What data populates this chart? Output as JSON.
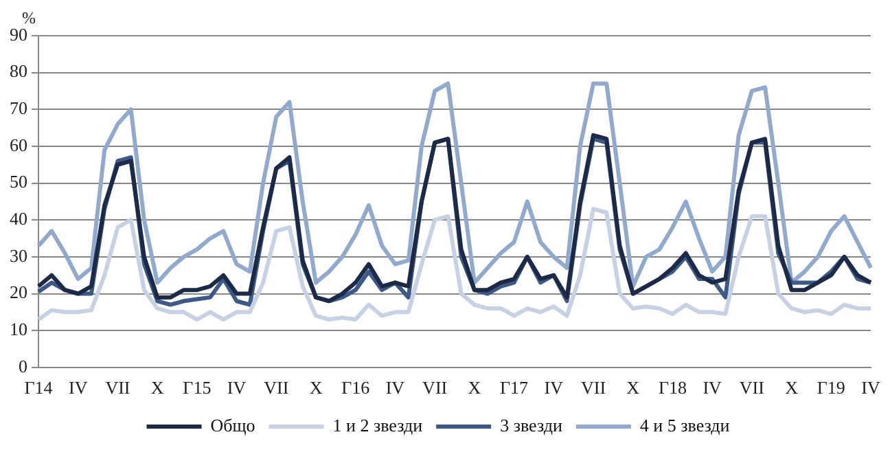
{
  "chart_data": {
    "type": "line",
    "ylabel": "%",
    "categories": [
      "Г14",
      null,
      null,
      "IV",
      null,
      null,
      "VII",
      null,
      null,
      "X",
      null,
      null,
      "Г15",
      null,
      null,
      "IV",
      null,
      null,
      "VII",
      null,
      null,
      "X",
      null,
      null,
      "Г16",
      null,
      null,
      "IV",
      null,
      null,
      "VII",
      null,
      null,
      "X",
      null,
      null,
      "Г17",
      null,
      null,
      "IV",
      null,
      null,
      "VII",
      null,
      null,
      "X",
      null,
      null,
      "Г18",
      null,
      null,
      "IV",
      null,
      null,
      "VII",
      null,
      null,
      "X",
      null,
      null,
      "Г19",
      null,
      null,
      "IV"
    ],
    "series": [
      {
        "name": "Общо",
        "color": "#1c2a48",
        "values": [
          22,
          25,
          21,
          20,
          22,
          44,
          55,
          56,
          30,
          19,
          19,
          21,
          21,
          22,
          25,
          20,
          20,
          38,
          54,
          57,
          29,
          19,
          18,
          20,
          23,
          28,
          22,
          23,
          22,
          45,
          61,
          62,
          32,
          21,
          21,
          23,
          24,
          30,
          24,
          25,
          19,
          45,
          63,
          62,
          33,
          20,
          22,
          24,
          27,
          31,
          25,
          23,
          24,
          48,
          61,
          62,
          33,
          21,
          21,
          23,
          25,
          30,
          25,
          23
        ]
      },
      {
        "name": "1 и 2 звезди",
        "color": "#c6d1e4",
        "values": [
          13,
          15.5,
          15,
          15,
          15.5,
          25,
          38,
          40,
          21,
          16,
          15,
          15,
          13,
          15,
          13,
          15,
          15,
          23,
          37,
          38,
          22,
          14,
          13,
          13.5,
          13,
          17,
          14,
          15,
          15,
          28,
          40,
          41,
          20,
          17,
          16,
          16,
          14,
          16,
          15,
          16.5,
          14,
          25,
          43,
          42,
          20,
          16,
          16.5,
          16,
          14.5,
          17,
          15,
          15,
          14.5,
          30,
          41,
          41,
          20,
          16,
          15,
          15.5,
          14.5,
          17,
          16,
          16
        ]
      },
      {
        "name": "3 звезди",
        "color": "#3d5a86",
        "values": [
          20.5,
          23,
          21,
          20,
          20,
          43,
          56,
          57,
          28,
          18,
          17,
          18,
          18.5,
          19,
          24,
          18,
          17,
          37,
          54,
          56,
          28,
          19,
          18,
          19,
          21,
          26,
          21,
          23,
          19,
          45,
          61,
          62,
          30,
          21,
          20,
          22,
          23,
          30,
          23,
          25,
          18,
          44,
          62,
          61,
          32,
          20,
          22,
          24,
          26,
          30,
          24,
          24,
          19,
          47,
          61,
          61,
          31,
          23,
          23,
          23,
          26,
          30,
          24,
          23
        ]
      },
      {
        "name": "4 и 5 звезди",
        "color": "#91a9cc",
        "values": [
          33,
          37,
          31,
          24,
          27,
          59,
          66,
          70,
          40,
          23,
          27,
          30,
          32,
          35,
          37,
          28,
          26,
          50,
          68,
          72,
          45,
          23,
          26,
          30,
          36,
          44,
          33,
          28,
          29,
          60,
          75,
          77,
          50,
          23,
          27,
          31,
          34,
          45,
          34,
          30,
          27,
          60,
          77,
          77,
          50,
          22,
          30,
          32,
          38,
          45,
          35,
          26,
          30,
          63,
          75,
          76,
          50,
          23,
          26,
          30,
          37,
          41,
          34,
          27
        ]
      }
    ],
    "ylim": [
      0,
      90
    ],
    "yticks": [
      0,
      10,
      20,
      30,
      40,
      50,
      60,
      70,
      80,
      90
    ],
    "grid": "y",
    "legend": "bottom",
    "marker": "none",
    "line_style": "solid"
  }
}
